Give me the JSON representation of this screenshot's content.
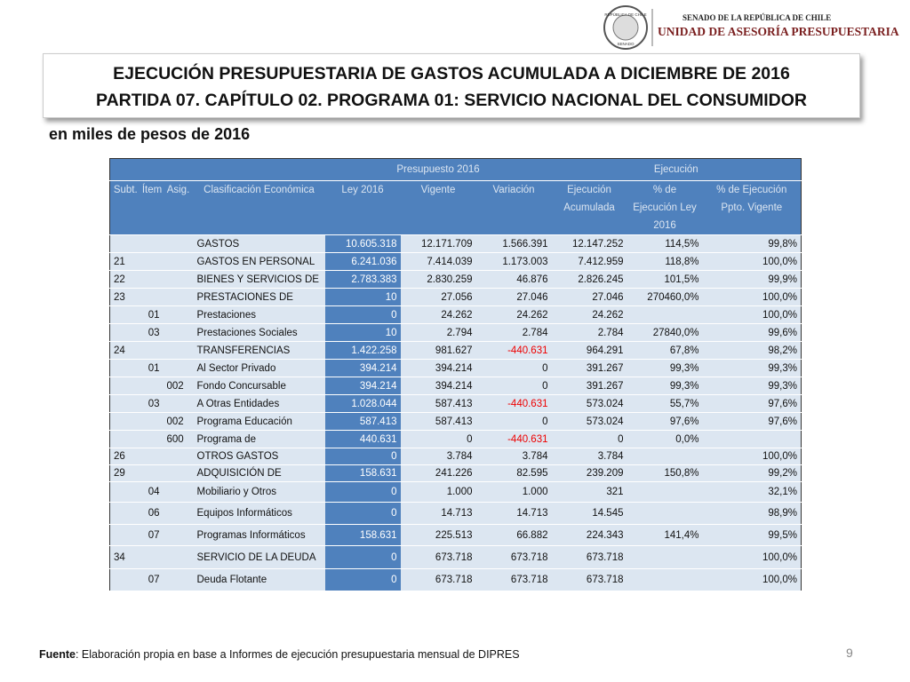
{
  "logo": {
    "line1": "SENADO DE LA REPÚBLICA DE CHILE",
    "line2": "UNIDAD DE ASESORÍA PRESUPUESTARIA",
    "seal_top": "REPÚBLICA DE CHILE",
    "seal_bottom": "SENADO"
  },
  "title": {
    "line1": "EJECUCIÓN PRESUPUESTARIA DE GASTOS ACUMULADA A DICIEMBRE DE 2016",
    "line2": "PARTIDA 07. CAPÍTULO 02. PROGRAMA 01: SERVICIO NACIONAL DEL CONSUMIDOR"
  },
  "subtitle": "en miles de pesos de 2016",
  "table": {
    "group_headers": [
      "Presupuesto 2016",
      "Ejecución"
    ],
    "headers": [
      "Subt.",
      "Ítem",
      "Asig.",
      "Clasificación Económica",
      "Ley 2016",
      "Vigente",
      "Variación",
      "Ejecución Acumulada",
      "% de Ejecución Ley 2016",
      "% de Ejecución Ppto. Vigente"
    ],
    "rows": [
      [
        null,
        null,
        null,
        "GASTOS",
        "10.605.318",
        "12.171.709",
        "1.566.391",
        "12.147.252",
        "114,5%",
        "99,8%"
      ],
      [
        "21",
        null,
        null,
        "GASTOS EN PERSONAL",
        "6.241.036",
        "7.414.039",
        "1.173.003",
        "7.412.959",
        "118,8%",
        "100,0%"
      ],
      [
        "22",
        null,
        null,
        "BIENES Y SERVICIOS DE",
        "2.783.383",
        "2.830.259",
        "46.876",
        "2.826.245",
        "101,5%",
        "99,9%"
      ],
      [
        "23",
        null,
        null,
        "PRESTACIONES DE",
        "10",
        "27.056",
        "27.046",
        "27.046",
        "270460,0%",
        "100,0%"
      ],
      [
        null,
        "01",
        null,
        "Prestaciones",
        "0",
        "24.262",
        "24.262",
        "24.262",
        null,
        "100,0%"
      ],
      [
        null,
        "03",
        null,
        "Prestaciones Sociales",
        "10",
        "2.794",
        "2.784",
        "2.784",
        "27840,0%",
        "99,6%"
      ],
      [
        "24",
        null,
        null,
        "TRANSFERENCIAS",
        "1.422.258",
        "981.627",
        "-440.631",
        "964.291",
        "67,8%",
        "98,2%"
      ],
      [
        null,
        "01",
        null,
        "Al Sector Privado",
        "394.214",
        "394.214",
        "0",
        "391.267",
        "99,3%",
        "99,3%"
      ],
      [
        null,
        null,
        "002",
        "Fondo Concursable",
        "394.214",
        "394.214",
        "0",
        "391.267",
        "99,3%",
        "99,3%"
      ],
      [
        null,
        "03",
        null,
        "A Otras Entidades",
        "1.028.044",
        "587.413",
        "-440.631",
        "573.024",
        "55,7%",
        "97,6%"
      ],
      [
        null,
        null,
        "002",
        "Programa Educación",
        "587.413",
        "587.413",
        "0",
        "573.024",
        "97,6%",
        "97,6%"
      ],
      [
        null,
        null,
        "600",
        "Programa de",
        "440.631",
        "0",
        "-440.631",
        "0",
        "0,0%",
        null
      ],
      [
        "26",
        null,
        null,
        "OTROS GASTOS",
        "0",
        "3.784",
        "3.784",
        "3.784",
        null,
        "100,0%"
      ],
      [
        "29",
        null,
        null,
        "ADQUISICIÓN DE",
        "158.631",
        "241.226",
        "82.595",
        "239.209",
        "150,8%",
        "99,2%"
      ],
      [
        null,
        "04",
        null,
        "Mobiliario y Otros",
        "0",
        "1.000",
        "1.000",
        "321",
        null,
        "32,1%"
      ],
      [
        null,
        "06",
        null,
        "Equipos Informáticos",
        "0",
        "14.713",
        "14.713",
        "14.545",
        null,
        "98,9%"
      ],
      [
        null,
        "07",
        null,
        "Programas Informáticos",
        "158.631",
        "225.513",
        "66.882",
        "224.343",
        "141,4%",
        "99,5%"
      ],
      [
        "34",
        null,
        null,
        "SERVICIO DE LA DEUDA",
        "0",
        "673.718",
        "673.718",
        "673.718",
        null,
        "100,0%"
      ],
      [
        null,
        "07",
        null,
        "Deuda Flotante",
        "0",
        "673.718",
        "673.718",
        "673.718",
        null,
        "100,0%"
      ]
    ]
  },
  "footer": {
    "source_label": "Fuente",
    "source_text": ": Elaboración propia en base  a Informes de ejecución presupuestaria mensual de DIPRES",
    "page_number": "9"
  }
}
